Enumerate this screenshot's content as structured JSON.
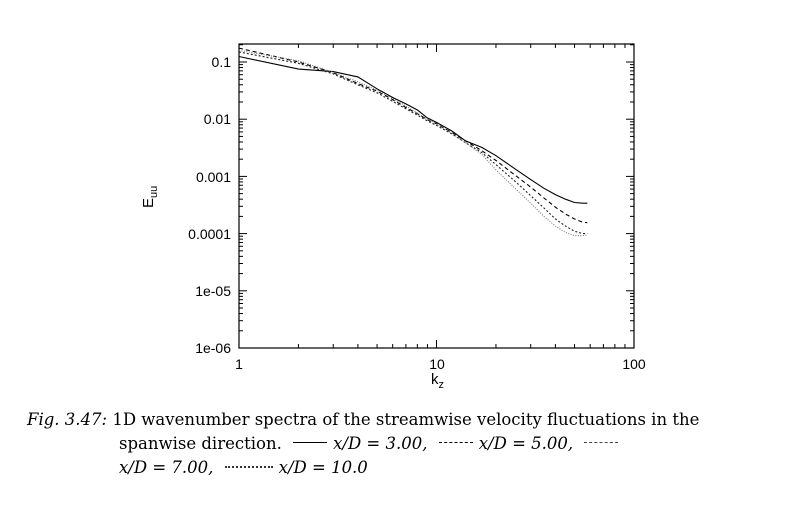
{
  "chart_data": {
    "type": "line",
    "title": "",
    "xlabel": "k",
    "xlabel_sub": "z",
    "ylabel": "E",
    "ylabel_sub": "uu",
    "xscale": "log",
    "yscale": "log",
    "xlim": [
      1,
      100
    ],
    "ylim": [
      1e-06,
      0.2
    ],
    "grid": false,
    "x_ticks": [
      1,
      10,
      100
    ],
    "x_tick_labels": [
      "1",
      "10",
      "100"
    ],
    "y_ticks": [
      0.1,
      0.01,
      0.001,
      0.0001,
      1e-05,
      1e-06
    ],
    "y_tick_labels": [
      "0.1",
      "0.01",
      "0.001",
      "0.0001",
      "1e-05",
      "1e-06"
    ],
    "series": [
      {
        "name": "x/D = 3.00",
        "style": "solid",
        "color": "#000000",
        "x": [
          1,
          2,
          3,
          4,
          5,
          6,
          7,
          8,
          9,
          10,
          12,
          14,
          17,
          20,
          25,
          30,
          35,
          40,
          45,
          50,
          55,
          58
        ],
        "y": [
          0.125,
          0.075,
          0.068,
          0.055,
          0.034,
          0.024,
          0.0185,
          0.0145,
          0.0105,
          0.0088,
          0.0062,
          0.0042,
          0.0032,
          0.0023,
          0.00135,
          0.00088,
          0.00062,
          0.00048,
          0.0004,
          0.00035,
          0.00034,
          0.00034
        ]
      },
      {
        "name": "x/D = 5.00",
        "style": "dashed",
        "color": "#000000",
        "x": [
          1,
          2,
          3,
          4,
          5,
          6,
          7,
          8,
          9,
          10,
          12,
          14,
          17,
          20,
          25,
          30,
          35,
          40,
          45,
          50,
          55,
          58
        ],
        "y": [
          0.175,
          0.1,
          0.065,
          0.042,
          0.031,
          0.022,
          0.016,
          0.0125,
          0.0098,
          0.0083,
          0.0058,
          0.0042,
          0.0028,
          0.0019,
          0.00105,
          0.00065,
          0.00042,
          0.00029,
          0.00022,
          0.00018,
          0.000158,
          0.000155
        ]
      },
      {
        "name": "x/D = 7.00",
        "style": "short-dash",
        "color": "#222222",
        "x": [
          1,
          2,
          3,
          4,
          5,
          6,
          7,
          8,
          9,
          10,
          12,
          14,
          17,
          20,
          25,
          30,
          35,
          40,
          45,
          50,
          55,
          58
        ],
        "y": [
          0.15,
          0.095,
          0.062,
          0.04,
          0.029,
          0.0205,
          0.0152,
          0.0118,
          0.0093,
          0.0078,
          0.0055,
          0.0039,
          0.0026,
          0.0016,
          0.00082,
          0.00046,
          0.00028,
          0.00018,
          0.000135,
          0.00011,
          0.0001,
          0.0001
        ]
      },
      {
        "name": "x/D = 10.0",
        "style": "dotted",
        "color": "#777777",
        "x": [
          1,
          2,
          3,
          4,
          5,
          6,
          7,
          8,
          9,
          10,
          12,
          14,
          17,
          20,
          25,
          30,
          35,
          40,
          45,
          50,
          55,
          58
        ],
        "y": [
          0.16,
          0.105,
          0.066,
          0.045,
          0.032,
          0.023,
          0.017,
          0.0128,
          0.01,
          0.0082,
          0.0057,
          0.0039,
          0.0024,
          0.0013,
          0.00062,
          0.00034,
          0.0002,
          0.000135,
          0.000105,
          9.2e-05,
          9.2e-05,
          9.5e-05
        ]
      }
    ]
  },
  "caption": {
    "fig_label": "Fig. 3.47:",
    "line1": "1D wavenumber spectra of the streamwise velocity fluctuations in the",
    "line2_text": "spanwise direction.",
    "legend": [
      {
        "label": "x/D = 3.00,",
        "style": "solid"
      },
      {
        "label": "x/D = 5.00,",
        "style": "dashed"
      },
      {
        "label": "x/D = 7.00,",
        "style": "short-dash"
      },
      {
        "label": "x/D = 10.0",
        "style": "dotted"
      }
    ]
  }
}
